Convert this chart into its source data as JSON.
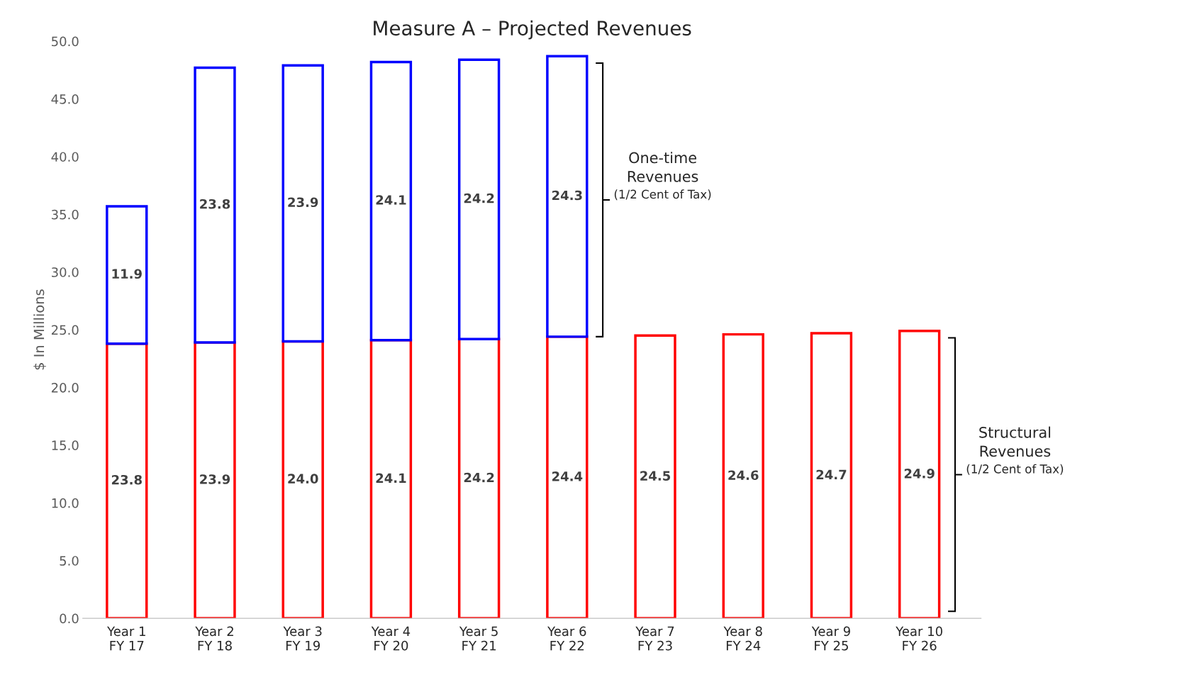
{
  "chart_data": {
    "type": "bar",
    "title": "Measure A – Projected Revenues",
    "ylabel": "$ In Millions",
    "categories": [
      "Year 1\nFY 17",
      "Year 2\nFY 18",
      "Year 3\nFY 19",
      "Year 4\nFY 20",
      "Year 5\nFY 21",
      "Year 6\nFY 22",
      "Year 7\nFY 23",
      "Year 8\nFY 24",
      "Year 9\nFY 25",
      "Year 10\nFY 26"
    ],
    "series": [
      {
        "color": "#ff0000",
        "values": [
          23.8,
          23.9,
          24.0,
          24.1,
          24.2,
          24.4,
          24.5,
          24.6,
          24.7,
          24.9
        ],
        "value_labels": [
          "23.8",
          "23.9",
          "24.0",
          "24.1",
          "24.2",
          "24.4",
          "24.5",
          "24.6",
          "24.7",
          "24.9"
        ]
      },
      {
        "color": "#0000ff",
        "values": [
          11.9,
          23.8,
          23.9,
          24.1,
          24.2,
          24.3,
          null,
          null,
          null,
          null
        ]
      }
    ],
    "stacked": true,
    "data_labels": true,
    "grid": false,
    "ylim": [
      0,
      50
    ],
    "yticks": [
      {
        "value": 0,
        "label": "0.0"
      },
      {
        "value": 5,
        "label": "5.0"
      },
      {
        "value": 10,
        "label": "10.0"
      },
      {
        "value": 15,
        "label": "15.0"
      },
      {
        "value": 20,
        "label": "20.0"
      },
      {
        "value": 25,
        "label": "25.0"
      },
      {
        "value": 30,
        "label": "30.0"
      },
      {
        "value": 35,
        "label": "35.0"
      },
      {
        "value": 40,
        "label": "40.0"
      },
      {
        "value": 45,
        "label": "45.0"
      },
      {
        "value": 50,
        "label": "50.0"
      }
    ],
    "annotations": [
      "One-time\nRevenues",
      "(1/2 Cent of Tax)",
      "Structural\nRevenues",
      "(1/2 Cent of Tax)"
    ]
  }
}
